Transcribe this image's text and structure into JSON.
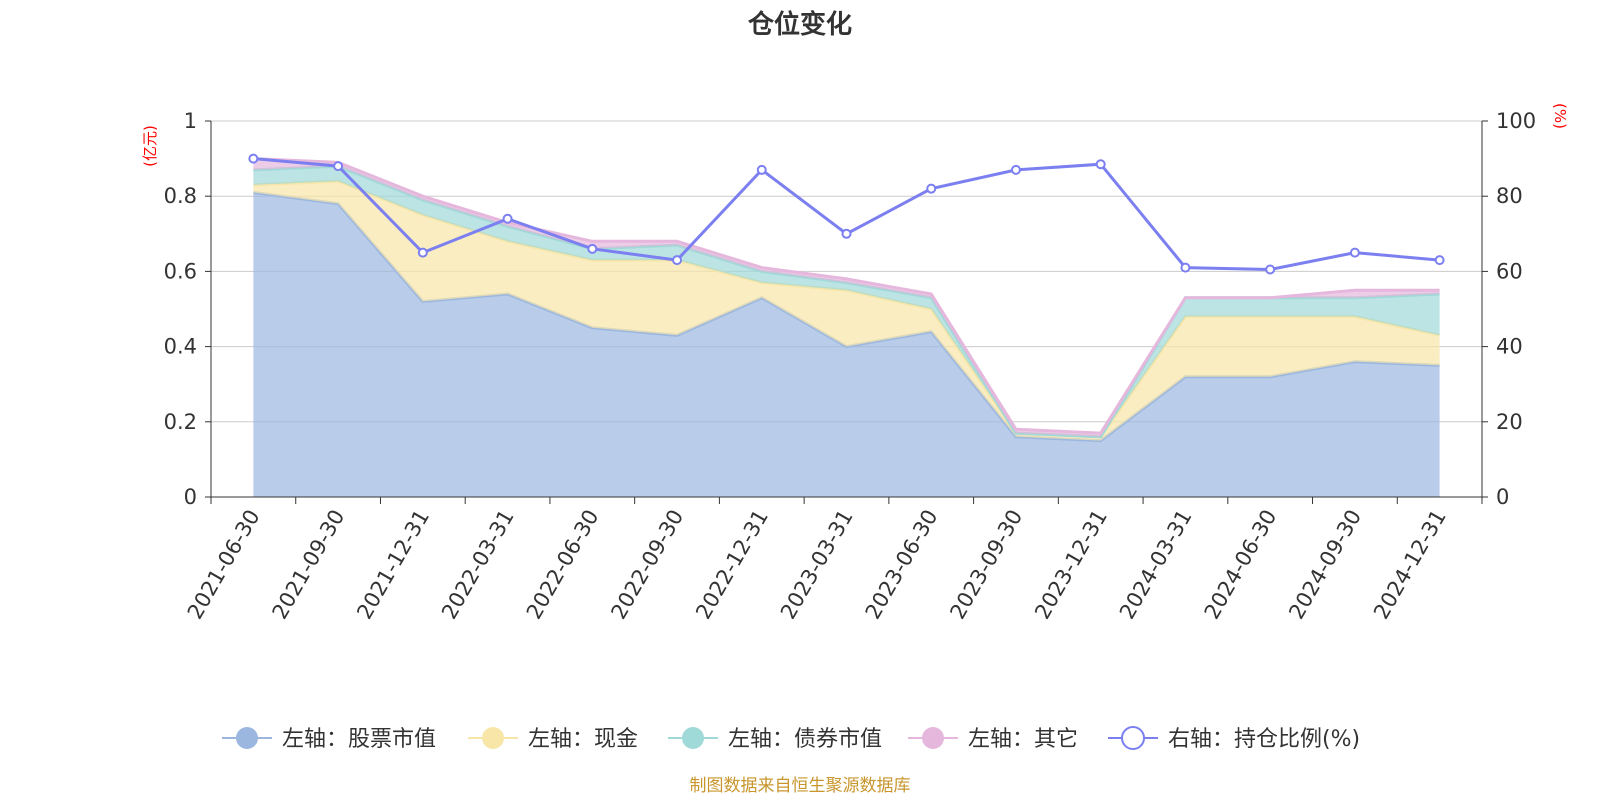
{
  "chart_data": {
    "type": "area",
    "title": "仓位变化",
    "categories": [
      "2021-06-30",
      "2021-09-30",
      "2021-12-31",
      "2022-03-31",
      "2022-06-30",
      "2022-09-30",
      "2022-12-31",
      "2023-03-31",
      "2023-06-30",
      "2023-09-30",
      "2023-12-31",
      "2024-03-31",
      "2024-06-30",
      "2024-09-30",
      "2024-12-31"
    ],
    "left_axis": {
      "unit": "(亿元)",
      "ylim": [
        0,
        1
      ],
      "ticks": [
        "0",
        "0.2",
        "0.4",
        "0.6",
        "0.8",
        "1"
      ]
    },
    "right_axis": {
      "unit": "(%)",
      "ylim": [
        0,
        100
      ],
      "ticks": [
        "0",
        "20",
        "40",
        "60",
        "80",
        "100"
      ]
    },
    "series": [
      {
        "name": "左轴：股票市值",
        "axis": "left",
        "stack": true,
        "color": "#9bb7e0",
        "values": [
          0.81,
          0.78,
          0.52,
          0.54,
          0.45,
          0.43,
          0.53,
          0.4,
          0.44,
          0.16,
          0.15,
          0.32,
          0.32,
          0.36,
          0.35
        ]
      },
      {
        "name": "左轴：现金",
        "axis": "left",
        "stack": true,
        "color": "#f8e6a8",
        "values": [
          0.02,
          0.06,
          0.23,
          0.14,
          0.18,
          0.2,
          0.04,
          0.15,
          0.06,
          0.01,
          0.01,
          0.16,
          0.16,
          0.12,
          0.08
        ]
      },
      {
        "name": "左轴：债券市值",
        "axis": "left",
        "stack": true,
        "color": "#9fd9d8",
        "values": [
          0.04,
          0.04,
          0.04,
          0.04,
          0.03,
          0.04,
          0.03,
          0.02,
          0.03,
          0.0,
          0.0,
          0.05,
          0.05,
          0.05,
          0.11
        ]
      },
      {
        "name": "左轴：其它",
        "axis": "left",
        "stack": true,
        "color": "#e6b7dd",
        "values": [
          0.03,
          0.01,
          0.01,
          0.01,
          0.02,
          0.01,
          0.01,
          0.01,
          0.01,
          0.01,
          0.01,
          0.0,
          0.0,
          0.02,
          0.01
        ]
      },
      {
        "name": "右轴：持仓比例(%)",
        "axis": "right",
        "type": "line",
        "color": "#7b7ff0",
        "values": [
          90,
          88,
          65,
          74,
          66,
          63,
          87,
          70,
          82,
          87,
          88.5,
          61,
          60.5,
          65,
          63
        ]
      }
    ],
    "grid": true,
    "legend_position": "bottom",
    "source_note": "制图数据来自恒生聚源数据库"
  }
}
